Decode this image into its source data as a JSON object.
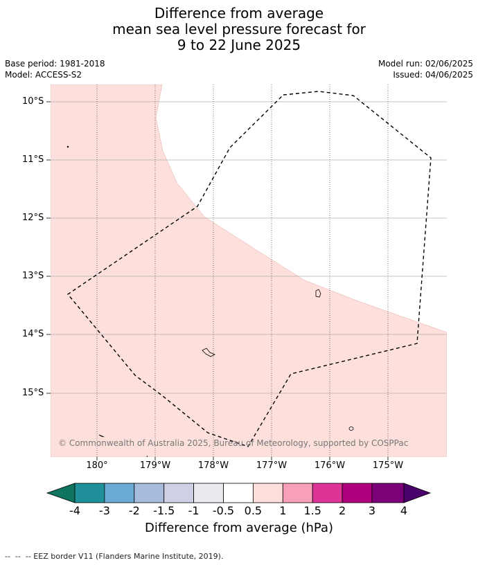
{
  "title": {
    "line1": "Difference from average",
    "line2": "mean sea level pressure forecast for",
    "line3": "9 to 22 June 2025"
  },
  "meta": {
    "base_period": "Base period: 1981-2018",
    "model": "Model: ACCESS-S2",
    "model_run": "Model run: 02/06/2025",
    "issued": "Issued: 04/06/2025"
  },
  "map": {
    "latitude_labels": [
      "10°S",
      "11°S",
      "12°S",
      "13°S",
      "14°S",
      "15°S"
    ],
    "longitude_labels": [
      "180°",
      "179°W",
      "178°W",
      "177°W",
      "176°W",
      "175°W"
    ],
    "copyright": "© Commonwealth of Australia 2025, Bureau of Meteorology, supported by COSPPac",
    "shaded_category": "0.5 to 1",
    "shaded_color": "#fde0dc",
    "eez_line_style": "dashed"
  },
  "colorbar": {
    "label": "Difference from average (hPa)",
    "ticks": [
      "-4",
      "-3",
      "-2",
      "-1.5",
      "-1",
      "-0.5",
      "0.5",
      "1",
      "1.5",
      "2",
      "3",
      "4"
    ],
    "colors": [
      "#0f7560",
      "#1f9099",
      "#6aaad2",
      "#a7bcdc",
      "#cfd0e6",
      "#ebe8ee",
      "#ffffff",
      "#fde0dc",
      "#f9a0b9",
      "#dd3497",
      "#ae017e",
      "#7a0177",
      "#49006a"
    ]
  },
  "footer": "--  --  -- EEZ border V11 (Flanders Marine Institute, 2019)."
}
